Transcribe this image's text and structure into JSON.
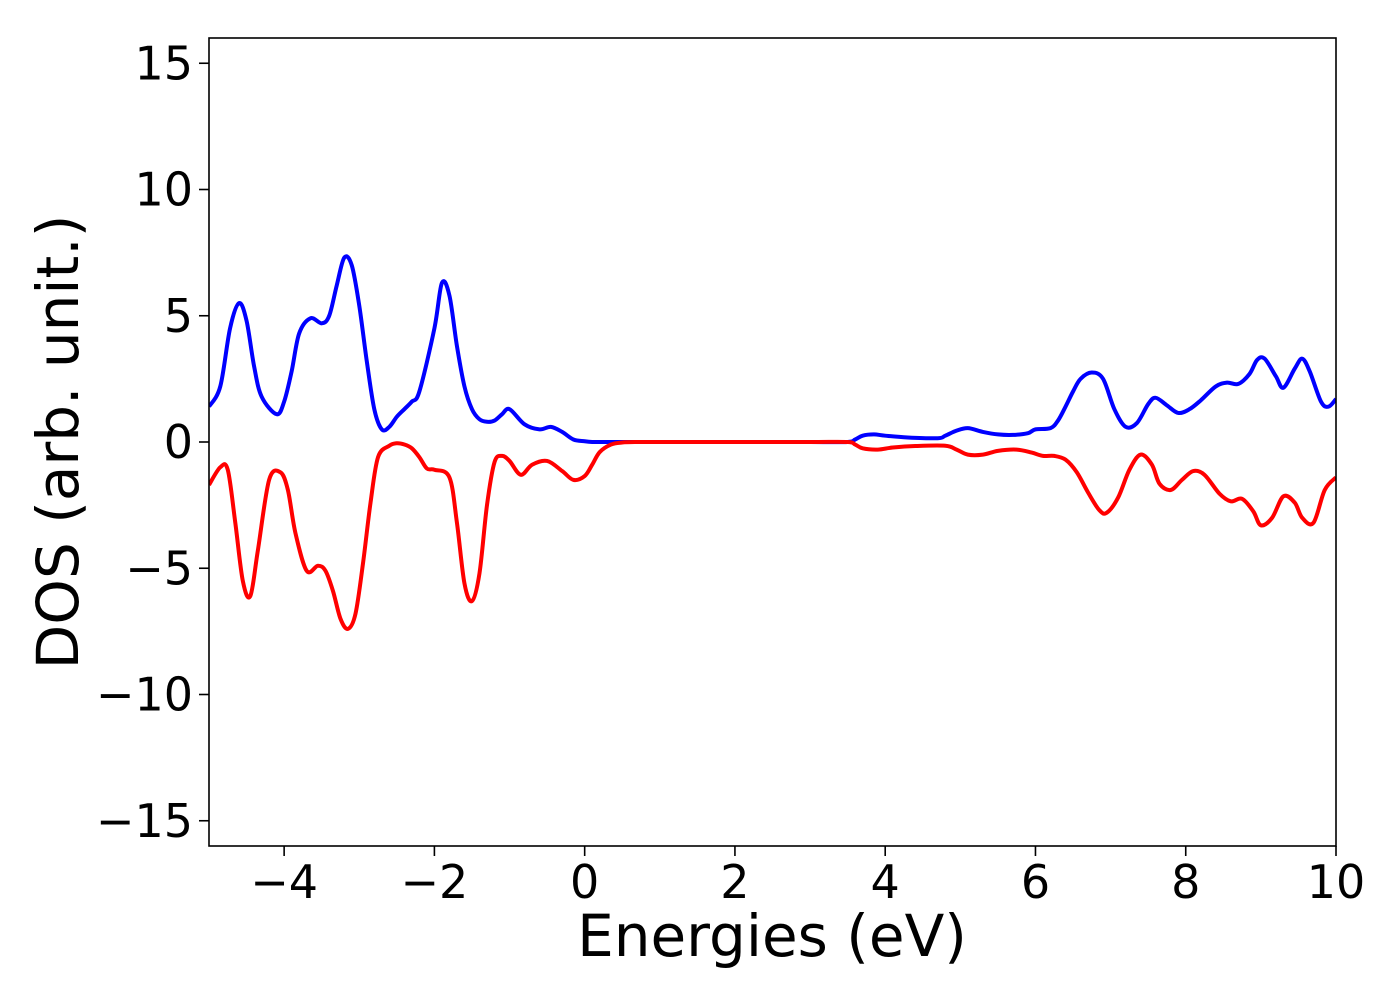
{
  "chart_data": {
    "type": "line",
    "title": "",
    "xlabel": "Energies (eV)",
    "ylabel": "DOS (arb. unit.)",
    "xlim": [
      -5,
      10
    ],
    "ylim": [
      -16,
      16
    ],
    "x_ticks": [
      -4,
      -2,
      0,
      2,
      4,
      6,
      8,
      10
    ],
    "x_tick_labels": [
      "−4",
      "−2",
      "0",
      "2",
      "4",
      "6",
      "8",
      "10"
    ],
    "y_ticks": [
      15,
      10,
      5,
      0,
      -5,
      -10,
      -15
    ],
    "y_tick_labels": [
      "15",
      "10",
      "5",
      "0",
      "−5",
      "−10",
      "−15"
    ],
    "grid": false,
    "legend": "none",
    "series": [
      {
        "color": "#0000ff",
        "x": [
          -5.0,
          -4.85,
          -4.72,
          -4.6,
          -4.5,
          -4.4,
          -4.3,
          -4.1,
          -4.0,
          -3.9,
          -3.8,
          -3.65,
          -3.5,
          -3.4,
          -3.3,
          -3.2,
          -3.1,
          -3.0,
          -2.9,
          -2.8,
          -2.7,
          -2.6,
          -2.5,
          -2.4,
          -2.3,
          -2.2,
          -2.0,
          -1.9,
          -1.8,
          -1.7,
          -1.6,
          -1.5,
          -1.4,
          -1.3,
          -1.2,
          -1.1,
          -1.0,
          -0.8,
          -0.6,
          -0.45,
          -0.3,
          -0.15,
          0.0,
          0.1,
          0.2,
          0.3,
          0.4,
          0.6,
          1.0,
          2.0,
          3.0,
          3.5,
          3.6,
          3.7,
          3.85,
          4.0,
          4.3,
          4.7,
          4.8,
          4.95,
          5.1,
          5.3,
          5.5,
          5.7,
          5.9,
          6.0,
          6.2,
          6.3,
          6.4,
          6.5,
          6.6,
          6.75,
          6.9,
          7.05,
          7.2,
          7.35,
          7.5,
          7.6,
          7.75,
          7.9,
          8.05,
          8.2,
          8.4,
          8.55,
          8.7,
          8.85,
          8.95,
          9.05,
          9.2,
          9.3,
          9.45,
          9.55,
          9.65,
          9.8,
          9.9,
          10.0
        ],
        "y": [
          1.4,
          2.2,
          4.5,
          5.5,
          4.8,
          3.0,
          1.8,
          1.1,
          1.6,
          2.8,
          4.3,
          4.9,
          4.7,
          5.0,
          6.2,
          7.3,
          7.0,
          5.4,
          3.2,
          1.3,
          0.5,
          0.6,
          1.0,
          1.3,
          1.6,
          2.0,
          4.5,
          6.3,
          5.8,
          3.8,
          2.2,
          1.3,
          0.9,
          0.8,
          0.85,
          1.1,
          1.3,
          0.7,
          0.5,
          0.6,
          0.4,
          0.1,
          0.03,
          0.0,
          0.0,
          0.0,
          0.0,
          0.0,
          0.0,
          0.0,
          0.0,
          0.0,
          0.1,
          0.25,
          0.3,
          0.25,
          0.18,
          0.15,
          0.25,
          0.45,
          0.55,
          0.4,
          0.3,
          0.28,
          0.35,
          0.5,
          0.55,
          0.85,
          1.4,
          2.0,
          2.5,
          2.75,
          2.5,
          1.3,
          0.6,
          0.75,
          1.5,
          1.75,
          1.45,
          1.15,
          1.3,
          1.65,
          2.2,
          2.35,
          2.3,
          2.7,
          3.25,
          3.3,
          2.6,
          2.15,
          2.9,
          3.3,
          2.8,
          1.6,
          1.4,
          1.7
        ]
      },
      {
        "color": "#ff0000",
        "x": [
          -5.0,
          -4.85,
          -4.75,
          -4.65,
          -4.55,
          -4.45,
          -4.35,
          -4.2,
          -4.05,
          -3.95,
          -3.85,
          -3.7,
          -3.55,
          -3.45,
          -3.35,
          -3.25,
          -3.15,
          -3.05,
          -2.95,
          -2.85,
          -2.75,
          -2.6,
          -2.5,
          -2.4,
          -2.3,
          -2.2,
          -2.1,
          -2.0,
          -1.8,
          -1.7,
          -1.6,
          -1.5,
          -1.4,
          -1.3,
          -1.2,
          -1.1,
          -1.0,
          -0.85,
          -0.7,
          -0.5,
          -0.3,
          -0.15,
          0.0,
          0.1,
          0.2,
          0.35,
          0.5,
          0.7,
          0.9,
          1.1,
          2.0,
          3.0,
          3.5,
          3.6,
          3.7,
          3.9,
          4.1,
          4.4,
          4.8,
          4.95,
          5.1,
          5.3,
          5.5,
          5.75,
          5.95,
          6.1,
          6.25,
          6.4,
          6.55,
          6.7,
          6.85,
          6.95,
          7.1,
          7.25,
          7.4,
          7.55,
          7.65,
          7.8,
          7.95,
          8.1,
          8.25,
          8.45,
          8.6,
          8.75,
          8.9,
          9.0,
          9.15,
          9.3,
          9.45,
          9.55,
          9.7,
          9.85,
          10.0
        ],
        "y": [
          -1.7,
          -1.0,
          -1.1,
          -3.2,
          -5.5,
          -6.1,
          -4.3,
          -1.5,
          -1.2,
          -1.9,
          -3.6,
          -5.1,
          -4.9,
          -5.1,
          -5.9,
          -7.0,
          -7.4,
          -6.8,
          -4.8,
          -2.4,
          -0.6,
          -0.15,
          -0.05,
          -0.1,
          -0.25,
          -0.6,
          -1.05,
          -1.1,
          -1.4,
          -3.2,
          -5.6,
          -6.3,
          -5.2,
          -2.5,
          -0.8,
          -0.55,
          -0.75,
          -1.3,
          -0.9,
          -0.75,
          -1.15,
          -1.5,
          -1.35,
          -0.9,
          -0.4,
          -0.1,
          -0.02,
          0.0,
          0.0,
          0.0,
          0.0,
          0.0,
          0.0,
          -0.1,
          -0.25,
          -0.3,
          -0.22,
          -0.16,
          -0.15,
          -0.3,
          -0.5,
          -0.5,
          -0.35,
          -0.3,
          -0.42,
          -0.55,
          -0.55,
          -0.7,
          -1.2,
          -2.0,
          -2.7,
          -2.8,
          -2.2,
          -1.1,
          -0.5,
          -0.9,
          -1.65,
          -1.9,
          -1.5,
          -1.15,
          -1.3,
          -2.05,
          -2.35,
          -2.25,
          -2.75,
          -3.3,
          -3.0,
          -2.15,
          -2.4,
          -3.0,
          -3.2,
          -1.9,
          -1.4
        ]
      }
    ]
  }
}
